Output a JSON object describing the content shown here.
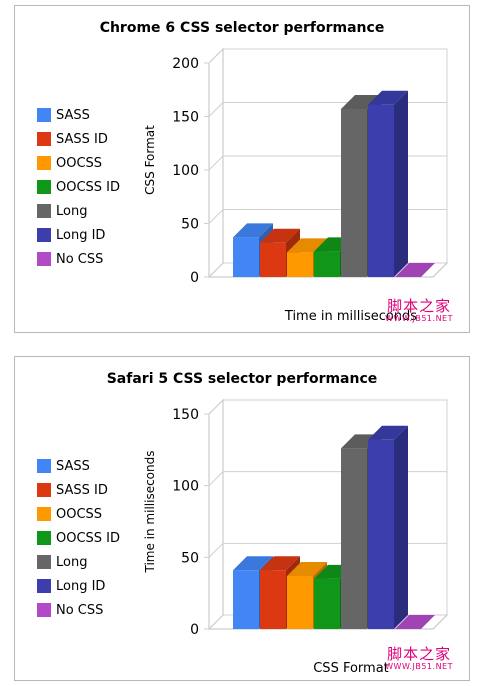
{
  "chart_data": [
    {
      "type": "bar",
      "title": "Chrome 6 CSS selector performance",
      "xlabel": "Time in milliseconds",
      "ylabel": "CSS Format",
      "ylim": [
        0,
        200
      ],
      "yticks": [
        "0",
        "50",
        "100",
        "150",
        "200"
      ],
      "grid": true,
      "legend_position": "left",
      "series": [
        {
          "name": "SASS",
          "color": "#4285f4",
          "value": 37
        },
        {
          "name": "SASS ID",
          "color": "#dc3912",
          "value": 32
        },
        {
          "name": "OOCSS",
          "color": "#ff9900",
          "value": 23
        },
        {
          "name": "OOCSS ID",
          "color": "#109618",
          "value": 24
        },
        {
          "name": "Long",
          "color": "#666666",
          "value": 157
        },
        {
          "name": "Long ID",
          "color": "#3b3eac",
          "value": 161
        },
        {
          "name": "No CSS",
          "color": "#b24ac8",
          "value": 0
        }
      ]
    },
    {
      "type": "bar",
      "title": "Safari 5 CSS selector performance",
      "xlabel": "CSS Format",
      "ylabel": "Time in milliseconds",
      "ylim": [
        0,
        150
      ],
      "yticks": [
        "0",
        "50",
        "100",
        "150"
      ],
      "grid": true,
      "legend_position": "left",
      "series": [
        {
          "name": "SASS",
          "color": "#4285f4",
          "value": 41
        },
        {
          "name": "SASS ID",
          "color": "#dc3912",
          "value": 41
        },
        {
          "name": "OOCSS",
          "color": "#ff9900",
          "value": 37
        },
        {
          "name": "OOCSS ID",
          "color": "#109618",
          "value": 35
        },
        {
          "name": "Long",
          "color": "#666666",
          "value": 126
        },
        {
          "name": "Long ID",
          "color": "#3b3eac",
          "value": 132
        },
        {
          "name": "No CSS",
          "color": "#b24ac8",
          "value": 0
        }
      ]
    }
  ],
  "watermark": {
    "text": "脚本之家",
    "url": "WWW.JB51.NET"
  }
}
